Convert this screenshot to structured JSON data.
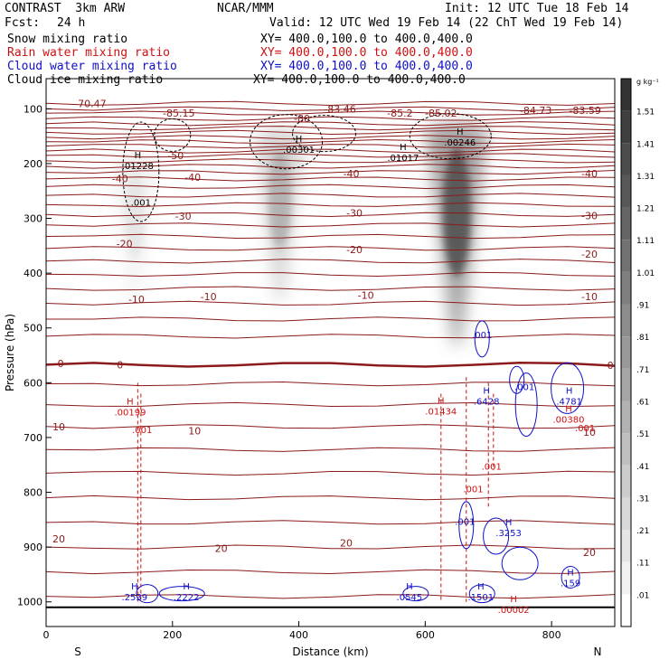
{
  "header": {
    "model": "CONTRAST  3km ARW",
    "org": "NCAR/MMM",
    "init": "Init: 12 UTC Tue 18 Feb 14",
    "fcst_label": "Fcst:",
    "fcst_value": "24 h",
    "valid": "Valid: 12 UTC Wed 19 Feb 14 (22 ChT Wed 19 Feb 14)"
  },
  "fields": [
    {
      "name": "Snow mixing ratio",
      "color": "#000000",
      "xy": "XY= 400.0,100.0 to 400.0,400.0"
    },
    {
      "name": "Rain water mixing ratio",
      "color": "#d01010",
      "xy": "XY= 400.0,100.0 to 400.0,400.0"
    },
    {
      "name": "Cloud water mixing ratio",
      "color": "#1010c8",
      "xy": "XY= 400.0,100.0 to 400.0,400.0"
    },
    {
      "name": "Cloud ice mixing ratio",
      "color": "#000000",
      "xy": "XY= 400.0,100.0 to 400.0,400.0"
    }
  ],
  "chart_data": {
    "type": "heatmap",
    "description_fields": [
      "Snow mixing ratio (shaded)",
      "Rain water (red dashed)",
      "Cloud water (blue)",
      "Cloud ice (black dashed)",
      "Temperature (brown contours)"
    ],
    "xlabel": "Distance (km)",
    "ylabel": "Pressure (hPa)",
    "xlim": [
      0,
      900
    ],
    "ylim": [
      1045,
      45
    ],
    "x_ticks": [
      0,
      200,
      400,
      600,
      800
    ],
    "y_ticks": [
      100,
      200,
      300,
      400,
      500,
      600,
      700,
      800,
      900,
      1000
    ],
    "direction_labels": {
      "left": "S",
      "right": "N"
    },
    "colorbar": {
      "unit": "g kg⁻¹",
      "levels": [
        "1.51",
        "1.41",
        "1.31",
        "1.21",
        "1.11",
        "1.01",
        ".91",
        ".81",
        ".71",
        ".61",
        ".51",
        ".41",
        ".31",
        ".21",
        ".11",
        ".01"
      ],
      "level_values": [
        1.51,
        1.41,
        1.31,
        1.21,
        1.11,
        1.01,
        0.91,
        0.81,
        0.71,
        0.61,
        0.51,
        0.41,
        0.31,
        0.21,
        0.11,
        0.01
      ]
    },
    "snow_plumes": [
      {
        "x_center": 140,
        "p_top": 190,
        "p_bottom": 460,
        "max": 0.2
      },
      {
        "x_center": 370,
        "p_top": 150,
        "p_bottom": 450,
        "max": 0.6
      },
      {
        "x_center": 650,
        "p_top": 140,
        "p_bottom": 530,
        "max": 1.3
      }
    ],
    "temperature_contours": [
      {
        "label": "-70.47",
        "x": 70,
        "p": 90
      },
      {
        "label": "-85.15",
        "x": 210,
        "p": 108
      },
      {
        "label": "-83.46",
        "x": 465,
        "p": 100
      },
      {
        "label": "-85.2",
        "x": 560,
        "p": 108
      },
      {
        "label": "-85.02",
        "x": 625,
        "p": 108
      },
      {
        "label": "-84.73",
        "x": 775,
        "p": 103
      },
      {
        "label": "-83.59",
        "x": 853,
        "p": 103
      },
      {
        "label": "-80",
        "x": 405,
        "p": 118
      },
      {
        "label": "-50",
        "x": 205,
        "p": 185
      },
      {
        "label": "-40",
        "x": 117,
        "p": 227
      },
      {
        "label": "-40",
        "x": 232,
        "p": 225
      },
      {
        "label": "-40",
        "x": 483,
        "p": 218
      },
      {
        "label": "-40",
        "x": 860,
        "p": 218
      },
      {
        "label": "-30",
        "x": 217,
        "p": 296
      },
      {
        "label": "-30",
        "x": 488,
        "p": 290
      },
      {
        "label": "-30",
        "x": 860,
        "p": 295
      },
      {
        "label": "-20",
        "x": 124,
        "p": 346
      },
      {
        "label": "-20",
        "x": 488,
        "p": 357
      },
      {
        "label": "-20",
        "x": 860,
        "p": 365
      },
      {
        "label": "-10",
        "x": 143,
        "p": 448
      },
      {
        "label": "-10",
        "x": 257,
        "p": 443
      },
      {
        "label": "-10",
        "x": 506,
        "p": 440
      },
      {
        "label": "-10",
        "x": 860,
        "p": 443
      },
      {
        "label": "0",
        "x": 23,
        "p": 565
      },
      {
        "label": "0",
        "x": 117,
        "p": 567
      },
      {
        "label": "0",
        "x": 893,
        "p": 568
      },
      {
        "label": "10",
        "x": 20,
        "p": 680
      },
      {
        "label": "10",
        "x": 235,
        "p": 688
      },
      {
        "label": "10",
        "x": 860,
        "p": 690
      },
      {
        "label": "20",
        "x": 20,
        "p": 885
      },
      {
        "label": "20",
        "x": 277,
        "p": 902
      },
      {
        "label": "20",
        "x": 475,
        "p": 892
      },
      {
        "label": "20",
        "x": 860,
        "p": 910
      }
    ],
    "maxima": [
      {
        "symbol": "H",
        "value": ".01228",
        "x": 145,
        "p": 200,
        "field": "ice"
      },
      {
        "symbol": "H",
        "value": ".00301",
        "x": 400,
        "p": 170,
        "field": "snow"
      },
      {
        "symbol": "H",
        "value": ".01017",
        "x": 565,
        "p": 185,
        "field": "ice"
      },
      {
        "symbol": "H",
        "value": ".00246",
        "x": 655,
        "p": 157,
        "field": "ice"
      },
      {
        "symbol": "H",
        "value": ".00199",
        "x": 133,
        "p": 650,
        "field": "rain"
      },
      {
        "symbol": "H",
        "value": ".01434",
        "x": 625,
        "p": 648,
        "field": "rain"
      },
      {
        "symbol": "H",
        "value": ".6428",
        "x": 697,
        "p": 630,
        "field": "cloud"
      },
      {
        "symbol": "H",
        "value": ".4781",
        "x": 828,
        "p": 630,
        "field": "cloud"
      },
      {
        "symbol": "H",
        "value": ".00380",
        "x": 827,
        "p": 663,
        "field": "rain"
      },
      {
        "symbol": "H",
        "value": ".3253",
        "x": 732,
        "p": 870,
        "field": "cloud"
      },
      {
        "symbol": "H",
        "value": ".2539",
        "x": 140,
        "p": 987,
        "field": "cloud"
      },
      {
        "symbol": "H",
        "value": ".2222",
        "x": 222,
        "p": 987,
        "field": "cloud"
      },
      {
        "symbol": "H",
        "value": ".0545",
        "x": 575,
        "p": 987,
        "field": "cloud"
      },
      {
        "symbol": "H",
        "value": ".1501",
        "x": 688,
        "p": 987,
        "field": "cloud"
      },
      {
        "symbol": "H",
        "value": ".159",
        "x": 830,
        "p": 962,
        "field": "cloud"
      },
      {
        "symbol": "H",
        "value": ".00002",
        "x": 740,
        "p": 1010,
        "field": "rain"
      }
    ],
    "contour_labels": [
      {
        "value": ".001",
        "x": 150,
        "p": 270,
        "field": "ice"
      },
      {
        "value": ".001",
        "x": 152,
        "p": 685,
        "field": "rain"
      },
      {
        "value": ".001",
        "x": 690,
        "p": 512,
        "field": "cloud"
      },
      {
        "value": ".001",
        "x": 757,
        "p": 607,
        "field": "cloud"
      },
      {
        "value": ".001",
        "x": 705,
        "p": 752,
        "field": "rain"
      },
      {
        "value": ".001",
        "x": 853,
        "p": 682,
        "field": "rain"
      },
      {
        "value": ".001",
        "x": 676,
        "p": 793,
        "field": "rain"
      },
      {
        "value": ".001",
        "x": 663,
        "p": 853,
        "field": "cloud"
      }
    ]
  }
}
